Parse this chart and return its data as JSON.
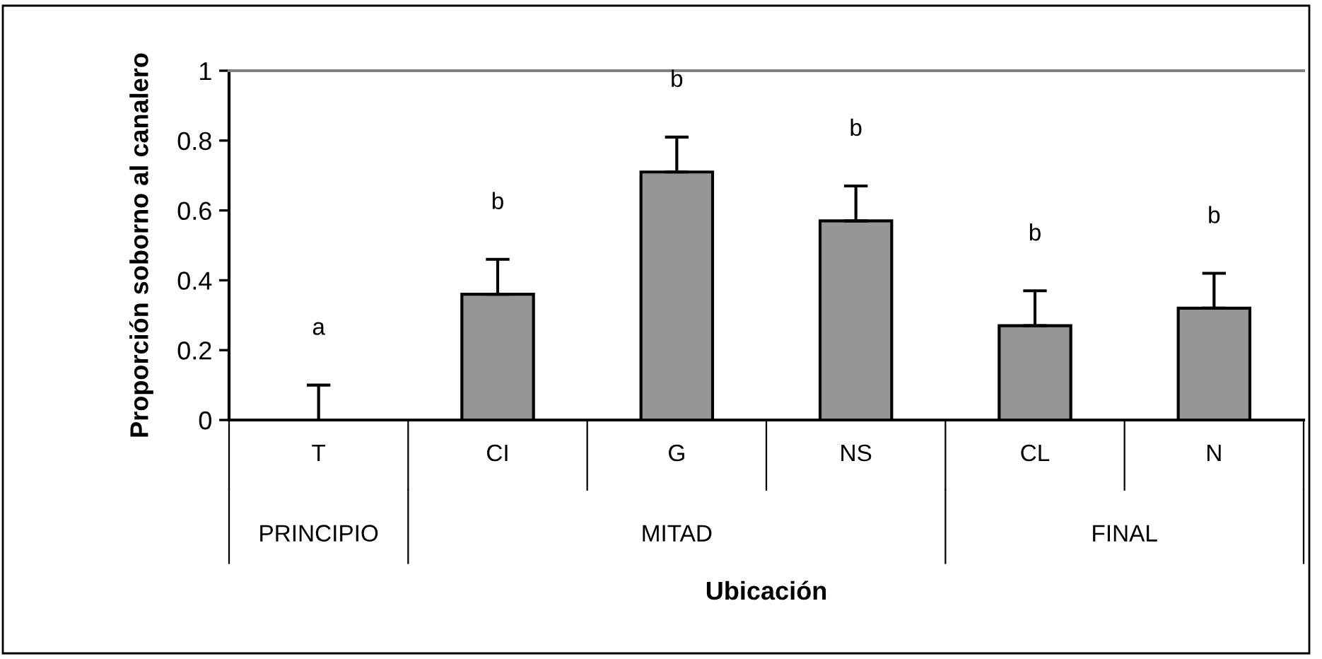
{
  "chart_data": {
    "type": "bar",
    "xlabel": "Ubicación",
    "ylabel": "Proporción soborno al canalero",
    "categories": [
      "T",
      "CI",
      "G",
      "NS",
      "CL",
      "N"
    ],
    "values": [
      0,
      0.36,
      0.71,
      0.57,
      0.27,
      0.32
    ],
    "errors": [
      [
        0,
        0.1
      ],
      [
        0.36,
        0.46
      ],
      [
        0.71,
        0.81
      ],
      [
        0.57,
        0.67
      ],
      [
        0.27,
        0.37
      ],
      [
        0.32,
        0.42
      ]
    ],
    "color": "#969696",
    "ylim": [
      0,
      1
    ],
    "yticks": [
      0,
      0.2,
      0.4,
      0.6,
      0.8,
      1
    ],
    "grid": false,
    "legend": false,
    "annotations": [
      "a",
      "b",
      "b",
      "b",
      "b",
      "b",
      "PRINCIPIO",
      "MITAD",
      "FINAL"
    ]
  }
}
